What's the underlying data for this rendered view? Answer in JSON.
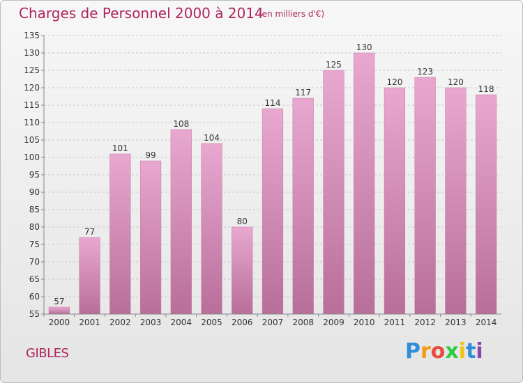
{
  "header": {
    "title": "Charges de Personnel 2000 à 2014",
    "unit": "(en milliers d'€)"
  },
  "footer": {
    "town": "GIBLES",
    "logo_letters": [
      "P",
      "r",
      "o",
      "x",
      "i",
      "t",
      "i"
    ],
    "logo_colors": [
      "#2f8fd8",
      "#f39c12",
      "#e74c3c",
      "#2ecc40",
      "#f1c40f",
      "#2f8fd8",
      "#8e44ad"
    ]
  },
  "colors": {
    "bar_top": "#e8a8cf",
    "bar_bottom": "#b86f9a",
    "bar_edge": "#c27ba6",
    "title": "#b0245c"
  },
  "chart_data": {
    "type": "bar",
    "title": "Charges de Personnel 2000 à 2014",
    "subtitle": "(en milliers d'€)",
    "xlabel": "",
    "ylabel": "",
    "categories": [
      "2000",
      "2001",
      "2002",
      "2003",
      "2004",
      "2005",
      "2006",
      "2007",
      "2008",
      "2009",
      "2010",
      "2011",
      "2012",
      "2013",
      "2014"
    ],
    "values": [
      57,
      77,
      101,
      99,
      108,
      104,
      80,
      114,
      117,
      125,
      130,
      120,
      123,
      120,
      118
    ],
    "ylim": [
      55,
      135
    ],
    "yticks": [
      55,
      60,
      65,
      70,
      75,
      80,
      85,
      90,
      95,
      100,
      105,
      110,
      115,
      120,
      125,
      130,
      135
    ],
    "grid": "horizontal-dashed",
    "legend": "none"
  }
}
